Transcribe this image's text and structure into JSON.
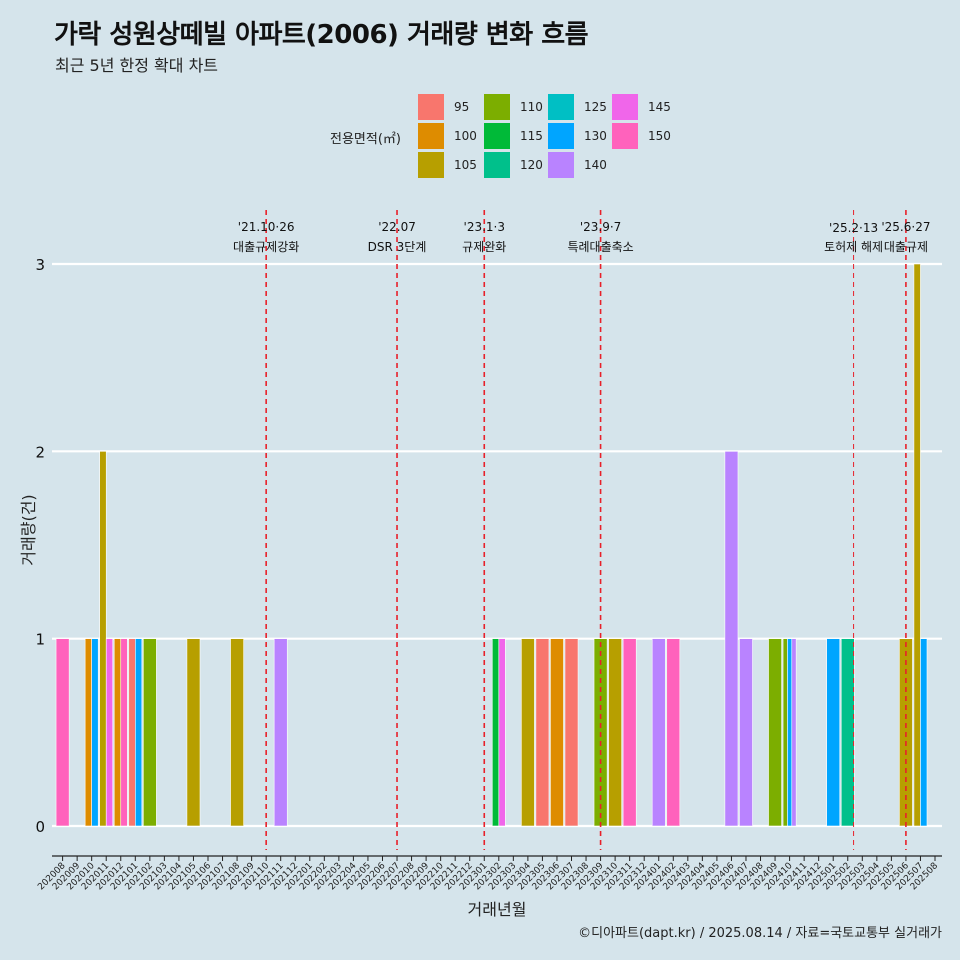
{
  "title": "가락 성원상떼빌 아파트(2006) 거래량 변화 흐름",
  "subtitle": "최근 5년 한정 확대 차트",
  "footer": "©디아파트(dapt.kr) / 2025.08.14 / 자료=국토교통부 실거래가",
  "legend": {
    "title": "전용면적(㎡)",
    "items": [
      {
        "label": "95",
        "color": "#F8766D"
      },
      {
        "label": "100",
        "color": "#DE8C00"
      },
      {
        "label": "105",
        "color": "#B79F00"
      },
      {
        "label": "110",
        "color": "#7CAE00"
      },
      {
        "label": "115",
        "color": "#00BA38"
      },
      {
        "label": "120",
        "color": "#00C08B"
      },
      {
        "label": "125",
        "color": "#00BFC4"
      },
      {
        "label": "130",
        "color": "#00A5FF"
      },
      {
        "label": "140",
        "color": "#B983FF"
      },
      {
        "label": "145",
        "color": "#F066EA"
      },
      {
        "label": "150",
        "color": "#FF62BC"
      }
    ]
  },
  "chart_data": {
    "type": "bar",
    "xlabel": "거래년월",
    "ylabel": "거래량(건)",
    "ylim": [
      0,
      3
    ],
    "yticks": [
      0,
      1,
      2,
      3
    ],
    "categories": [
      "202008",
      "202009",
      "202010",
      "202011",
      "202012",
      "202101",
      "202102",
      "202103",
      "202104",
      "202105",
      "202106",
      "202107",
      "202108",
      "202109",
      "202110",
      "202111",
      "202112",
      "202201",
      "202202",
      "202203",
      "202204",
      "202205",
      "202206",
      "202207",
      "202208",
      "202209",
      "202210",
      "202211",
      "202212",
      "202301",
      "202302",
      "202303",
      "202304",
      "202305",
      "202306",
      "202307",
      "202308",
      "202309",
      "202310",
      "202311",
      "202312",
      "202401",
      "202402",
      "202403",
      "202404",
      "202405",
      "202406",
      "202407",
      "202408",
      "202409",
      "202410",
      "202411",
      "202412",
      "202501",
      "202502",
      "202503",
      "202504",
      "202505",
      "202506",
      "202507",
      "202508"
    ],
    "bars": [
      {
        "month": "202008",
        "area": "150",
        "value": 1
      },
      {
        "month": "202010",
        "area": "100",
        "value": 1
      },
      {
        "month": "202010",
        "area": "130",
        "value": 1
      },
      {
        "month": "202011",
        "area": "105",
        "value": 2
      },
      {
        "month": "202011",
        "area": "145",
        "value": 1
      },
      {
        "month": "202012",
        "area": "100",
        "value": 1
      },
      {
        "month": "202012",
        "area": "150",
        "value": 1
      },
      {
        "month": "202101",
        "area": "95",
        "value": 1
      },
      {
        "month": "202101",
        "area": "130",
        "value": 1
      },
      {
        "month": "202102",
        "area": "110",
        "value": 1
      },
      {
        "month": "202105",
        "area": "105",
        "value": 1
      },
      {
        "month": "202108",
        "area": "105",
        "value": 1
      },
      {
        "month": "202111",
        "area": "140",
        "value": 1
      },
      {
        "month": "202302",
        "area": "115",
        "value": 1
      },
      {
        "month": "202302",
        "area": "145",
        "value": 1
      },
      {
        "month": "202304",
        "area": "105",
        "value": 1
      },
      {
        "month": "202305",
        "area": "95",
        "value": 1
      },
      {
        "month": "202306",
        "area": "100",
        "value": 1
      },
      {
        "month": "202307",
        "area": "95",
        "value": 1
      },
      {
        "month": "202309",
        "area": "110",
        "value": 1
      },
      {
        "month": "202310",
        "area": "105",
        "value": 1
      },
      {
        "month": "202311",
        "area": "150",
        "value": 1
      },
      {
        "month": "202401",
        "area": "140",
        "value": 1
      },
      {
        "month": "202402",
        "area": "150",
        "value": 1
      },
      {
        "month": "202406",
        "area": "140",
        "value": 2
      },
      {
        "month": "202407",
        "area": "140",
        "value": 1
      },
      {
        "month": "202409",
        "area": "110",
        "value": 1
      },
      {
        "month": "202410",
        "area": "110",
        "value": 1
      },
      {
        "month": "202410",
        "area": "130",
        "value": 1
      },
      {
        "month": "202410",
        "area": "140",
        "value": 1
      },
      {
        "month": "202501",
        "area": "130",
        "value": 1
      },
      {
        "month": "202502",
        "area": "120",
        "value": 1
      },
      {
        "month": "202506",
        "area": "105",
        "value": 1
      },
      {
        "month": "202507",
        "area": "105",
        "value": 3
      },
      {
        "month": "202507",
        "area": "130",
        "value": 1
      }
    ],
    "annotations": [
      {
        "date": "'21.10·26",
        "text": "대출규제강화",
        "x": "202110"
      },
      {
        "date": "'22.07",
        "text": "DSR 3단계",
        "x": "202207"
      },
      {
        "date": "'23.1·3",
        "text": "규제완화",
        "x": "202301"
      },
      {
        "date": "'23.9·7",
        "text": "특례대출축소",
        "x": "202309"
      },
      {
        "date": "'25.2·13",
        "text": "토허제 해제",
        "x": "202502"
      },
      {
        "date": "'25.6·27",
        "text": "대출규제",
        "x": "202506"
      }
    ],
    "vline_color": "#e8202a",
    "grid": true
  }
}
